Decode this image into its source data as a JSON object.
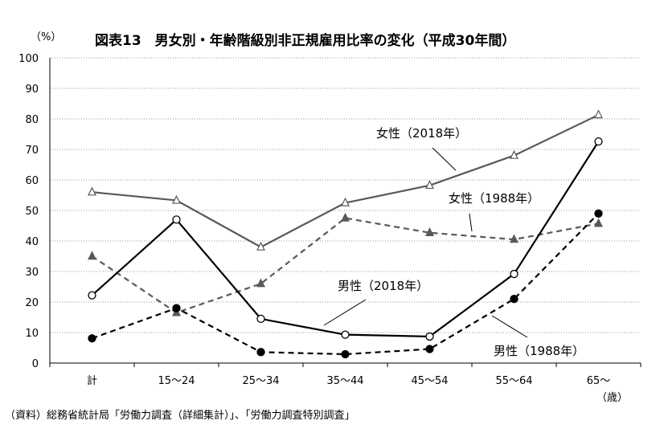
{
  "chart_data": {
    "type": "line",
    "title": "図表13　男女別・年齢階級別非正規雇用比率の変化（平成30年間）",
    "ylabel": "（%）",
    "xunit": "（歳）",
    "ylim": [
      0,
      100
    ],
    "yticks": [
      0,
      10,
      20,
      30,
      40,
      50,
      60,
      70,
      80,
      90,
      100
    ],
    "grid": true,
    "categories": [
      "計",
      "15～24",
      "25～34",
      "35～44",
      "45～54",
      "55～64",
      "65～"
    ],
    "series": [
      {
        "name": "女性（2018年）",
        "values": [
          56,
          53.3,
          38,
          52.5,
          58.2,
          68,
          81.3
        ],
        "color": "#595959",
        "dash": "solid",
        "marker": "open-triangle"
      },
      {
        "name": "女性（1988年）",
        "values": [
          35,
          16.5,
          26,
          47.5,
          42.7,
          40.5,
          45.7
        ],
        "color": "#595959",
        "dash": "dashed",
        "marker": "filled-triangle"
      },
      {
        "name": "男性（2018年）",
        "values": [
          22.2,
          47,
          14.5,
          9.3,
          8.7,
          29.2,
          72.6
        ],
        "color": "#000000",
        "dash": "solid",
        "marker": "open-circle"
      },
      {
        "name": "男性（1988年）",
        "values": [
          8.1,
          18,
          3.6,
          2.9,
          4.6,
          21,
          49
        ],
        "color": "#000000",
        "dash": "dashed",
        "marker": "filled-circle"
      }
    ],
    "source": "（資料）総務省統計局「労働力調査（詳細集計）」、「労働力調査特別調査」"
  }
}
